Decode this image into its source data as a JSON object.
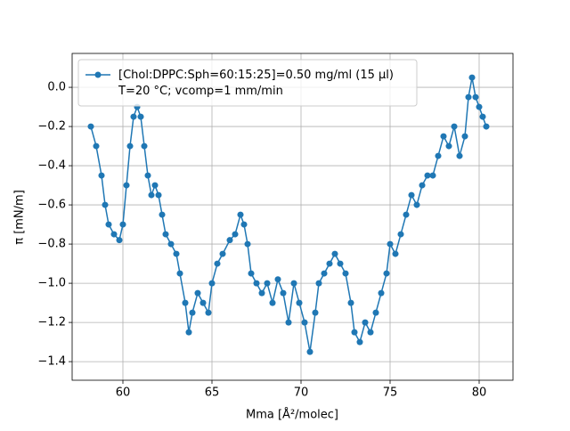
{
  "chart_data": {
    "type": "line",
    "xlabel": "Mma [Å²/molec]",
    "ylabel": "π [mN/m]",
    "series": [
      {
        "name": "[Chol:DPPC:Sph=60:15:25]=0.50 mg/ml (15 μl)\nT=20 °C; vcomp=1 mm/min",
        "color": "#1f77b4",
        "x": [
          58.2,
          58.5,
          58.8,
          59.0,
          59.2,
          59.5,
          59.8,
          60.0,
          60.2,
          60.4,
          60.6,
          60.8,
          61.0,
          61.2,
          61.4,
          61.6,
          61.8,
          62.0,
          62.2,
          62.4,
          62.7,
          63.0,
          63.2,
          63.5,
          63.7,
          63.9,
          64.2,
          64.5,
          64.8,
          65.0,
          65.3,
          65.6,
          66.0,
          66.3,
          66.6,
          66.8,
          67.0,
          67.2,
          67.5,
          67.8,
          68.1,
          68.4,
          68.7,
          69.0,
          69.3,
          69.6,
          69.9,
          70.2,
          70.5,
          70.8,
          71.0,
          71.3,
          71.6,
          71.9,
          72.2,
          72.5,
          72.8,
          73.0,
          73.3,
          73.6,
          73.9,
          74.2,
          74.5,
          74.8,
          75.0,
          75.3,
          75.6,
          75.9,
          76.2,
          76.5,
          76.8,
          77.1,
          77.4,
          77.7,
          78.0,
          78.3,
          78.6,
          78.9,
          79.2,
          79.4,
          79.6,
          79.8,
          80.0,
          80.2,
          80.4
        ],
        "values": [
          -0.2,
          -0.3,
          -0.45,
          -0.6,
          -0.7,
          -0.75,
          -0.78,
          -0.7,
          -0.5,
          -0.3,
          -0.15,
          -0.1,
          -0.15,
          -0.3,
          -0.45,
          -0.55,
          -0.5,
          -0.55,
          -0.65,
          -0.75,
          -0.8,
          -0.85,
          -0.95,
          -1.1,
          -1.25,
          -1.15,
          -1.05,
          -1.1,
          -1.15,
          -1.0,
          -0.9,
          -0.85,
          -0.78,
          -0.75,
          -0.65,
          -0.7,
          -0.8,
          -0.95,
          -1.0,
          -1.05,
          -1.0,
          -1.1,
          -0.98,
          -1.05,
          -1.2,
          -1.0,
          -1.1,
          -1.2,
          -1.35,
          -1.15,
          -1.0,
          -0.95,
          -0.9,
          -0.85,
          -0.9,
          -0.95,
          -1.1,
          -1.25,
          -1.3,
          -1.2,
          -1.25,
          -1.15,
          -1.05,
          -0.95,
          -0.8,
          -0.85,
          -0.75,
          -0.65,
          -0.55,
          -0.6,
          -0.5,
          -0.45,
          -0.45,
          -0.35,
          -0.25,
          -0.3,
          -0.2,
          -0.35,
          -0.25,
          -0.05,
          0.05,
          -0.05,
          -0.1,
          -0.15,
          -0.2
        ]
      }
    ],
    "xlim": [
      57.15,
      81.9
    ],
    "ylim": [
      -1.495,
      0.173
    ],
    "xticks": [
      60,
      65,
      70,
      75,
      80
    ],
    "yticks": [
      {
        "value": 0,
        "label": "0.0"
      },
      {
        "value": -0.2,
        "label": "−0.2"
      },
      {
        "value": -0.4,
        "label": "−0.4"
      },
      {
        "value": -0.6,
        "label": "−0.6"
      },
      {
        "value": -0.8,
        "label": "−0.8"
      },
      {
        "value": -1.0,
        "label": "−1.0"
      },
      {
        "value": -1.2,
        "label": "−1.2"
      },
      {
        "value": -1.4,
        "label": "−1.4"
      }
    ],
    "grid": true,
    "legend": "upper left"
  }
}
